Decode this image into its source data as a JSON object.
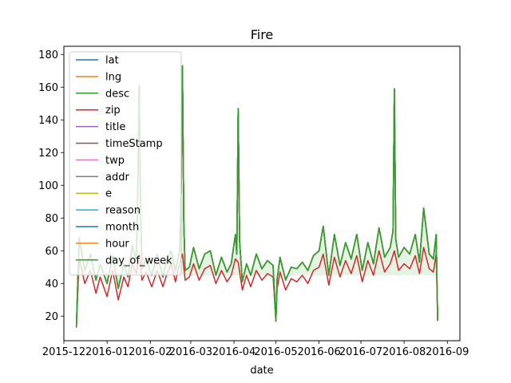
{
  "chart_data": {
    "type": "line",
    "title": "Fire",
    "xlabel": "date",
    "ylabel": "",
    "xlim": [
      "2015-12-01",
      "2016-09-10"
    ],
    "ylim": [
      5,
      185
    ],
    "x_tick_labels": [
      "2015-12",
      "2016-01",
      "2016-02",
      "2016-03",
      "2016-04",
      "2016-05",
      "2016-06",
      "2016-07",
      "2016-08",
      "2016-09"
    ],
    "y_tick_values": [
      20,
      40,
      60,
      80,
      100,
      120,
      140,
      160,
      180
    ],
    "legend_position": "upper left",
    "grid": false,
    "series": [
      {
        "name": "lat",
        "color": "#1f77b4"
      },
      {
        "name": "lng",
        "color": "#ff7f0e"
      },
      {
        "name": "desc",
        "color": "#2ca02c"
      },
      {
        "name": "zip",
        "color": "#d62728"
      },
      {
        "name": "title",
        "color": "#9467bd"
      },
      {
        "name": "timeStamp",
        "color": "#8c564b"
      },
      {
        "name": "twp",
        "color": "#e377c2"
      },
      {
        "name": "addr",
        "color": "#7f7f7f"
      },
      {
        "name": "e",
        "color": "#bcbd22"
      },
      {
        "name": "reason",
        "color": "#17becf"
      },
      {
        "name": "month",
        "color": "#1f77b4"
      },
      {
        "name": "hour",
        "color": "#ff7f0e"
      },
      {
        "name": "day_of_week",
        "color": "#2ca02c"
      }
    ],
    "count_series": {
      "x": [
        "2015-12-10",
        "2015-12-12",
        "2015-12-16",
        "2015-12-20",
        "2015-12-24",
        "2015-12-27",
        "2016-01-01",
        "2016-01-05",
        "2016-01-09",
        "2016-01-13",
        "2016-01-16",
        "2016-01-19",
        "2016-01-22",
        "2016-01-23",
        "2016-01-24",
        "2016-01-25",
        "2016-01-26",
        "2016-01-29",
        "2016-02-02",
        "2016-02-06",
        "2016-02-10",
        "2016-02-13",
        "2016-02-16",
        "2016-02-19",
        "2016-02-22",
        "2016-02-23",
        "2016-02-24",
        "2016-02-25",
        "2016-02-26",
        "2016-02-29",
        "2016-03-03",
        "2016-03-07",
        "2016-03-11",
        "2016-03-15",
        "2016-03-19",
        "2016-03-23",
        "2016-03-27",
        "2016-03-30",
        "2016-04-02",
        "2016-04-03",
        "2016-04-04",
        "2016-04-05",
        "2016-04-07",
        "2016-04-10",
        "2016-04-13",
        "2016-04-17",
        "2016-04-21",
        "2016-04-25",
        "2016-04-29",
        "2016-05-01",
        "2016-05-02",
        "2016-05-04",
        "2016-05-08",
        "2016-05-12",
        "2016-05-16",
        "2016-05-20",
        "2016-05-24",
        "2016-05-28",
        "2016-06-01",
        "2016-06-04",
        "2016-06-08",
        "2016-06-12",
        "2016-06-16",
        "2016-06-20",
        "2016-06-24",
        "2016-06-28",
        "2016-07-02",
        "2016-07-06",
        "2016-07-10",
        "2016-07-14",
        "2016-07-18",
        "2016-07-22",
        "2016-07-24",
        "2016-07-25",
        "2016-07-26",
        "2016-07-28",
        "2016-08-01",
        "2016-08-05",
        "2016-08-09",
        "2016-08-12",
        "2016-08-15",
        "2016-08-19",
        "2016-08-22",
        "2016-08-24",
        "2016-08-25"
      ],
      "y": [
        14,
        68,
        48,
        58,
        42,
        52,
        40,
        57,
        37,
        52,
        44,
        63,
        55,
        100,
        161,
        85,
        49,
        55,
        45,
        58,
        44,
        55,
        60,
        48,
        60,
        92,
        173,
        78,
        48,
        50,
        62,
        49,
        58,
        60,
        45,
        56,
        47,
        52,
        70,
        58,
        147,
        66,
        41,
        52,
        45,
        58,
        49,
        54,
        51,
        17,
        43,
        56,
        42,
        50,
        49,
        53,
        48,
        57,
        60,
        75,
        45,
        70,
        51,
        65,
        55,
        70,
        48,
        65,
        52,
        74,
        56,
        62,
        72,
        159,
        67,
        56,
        62,
        58,
        70,
        53,
        86,
        58,
        55,
        70,
        18
      ]
    },
    "zip_series": {
      "x": [
        "2015-12-10",
        "2015-12-12",
        "2015-12-16",
        "2015-12-20",
        "2015-12-24",
        "2015-12-27",
        "2016-01-01",
        "2016-01-05",
        "2016-01-09",
        "2016-01-13",
        "2016-01-16",
        "2016-01-19",
        "2016-01-22",
        "2016-01-24",
        "2016-01-26",
        "2016-01-29",
        "2016-02-02",
        "2016-02-06",
        "2016-02-10",
        "2016-02-13",
        "2016-02-16",
        "2016-02-19",
        "2016-02-22",
        "2016-02-24",
        "2016-02-26",
        "2016-02-29",
        "2016-03-03",
        "2016-03-07",
        "2016-03-11",
        "2016-03-15",
        "2016-03-19",
        "2016-03-23",
        "2016-03-27",
        "2016-03-30",
        "2016-04-02",
        "2016-04-04",
        "2016-04-07",
        "2016-04-10",
        "2016-04-13",
        "2016-04-17",
        "2016-04-21",
        "2016-04-25",
        "2016-04-29",
        "2016-05-01",
        "2016-05-02",
        "2016-05-04",
        "2016-05-08",
        "2016-05-12",
        "2016-05-16",
        "2016-05-20",
        "2016-05-24",
        "2016-05-28",
        "2016-06-01",
        "2016-06-04",
        "2016-06-08",
        "2016-06-12",
        "2016-06-16",
        "2016-06-20",
        "2016-06-24",
        "2016-06-28",
        "2016-07-02",
        "2016-07-06",
        "2016-07-10",
        "2016-07-14",
        "2016-07-18",
        "2016-07-22",
        "2016-07-25",
        "2016-07-28",
        "2016-08-01",
        "2016-08-05",
        "2016-08-09",
        "2016-08-12",
        "2016-08-15",
        "2016-08-19",
        "2016-08-22",
        "2016-08-24",
        "2016-08-25"
      ],
      "y": [
        13,
        55,
        40,
        48,
        34,
        44,
        32,
        48,
        30,
        44,
        38,
        52,
        46,
        58,
        42,
        47,
        38,
        48,
        38,
        46,
        52,
        41,
        52,
        58,
        42,
        44,
        52,
        42,
        49,
        51,
        40,
        48,
        41,
        45,
        55,
        53,
        36,
        45,
        38,
        48,
        42,
        46,
        44,
        17,
        37,
        47,
        36,
        43,
        41,
        45,
        40,
        48,
        50,
        58,
        39,
        56,
        44,
        54,
        46,
        57,
        41,
        54,
        45,
        60,
        47,
        52,
        60,
        48,
        52,
        49,
        57,
        46,
        62,
        49,
        47,
        58,
        17
      ]
    }
  }
}
